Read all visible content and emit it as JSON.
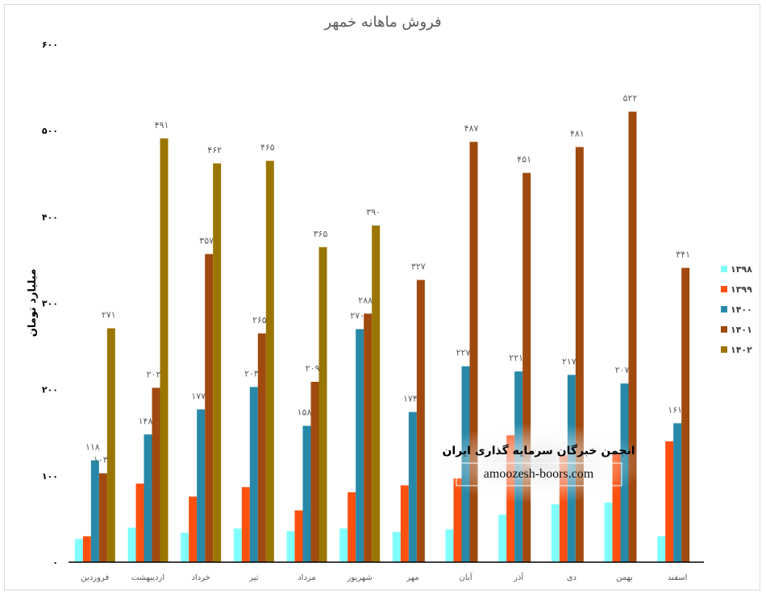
{
  "chart_data": {
    "type": "bar",
    "title": "فروش ماهانه خمهر",
    "xlabel": "",
    "ylabel": "میلیارد تومان",
    "ylim": [
      0,
      600
    ],
    "yticks": [
      0,
      100,
      200,
      300,
      400,
      500,
      600
    ],
    "ytick_labels": [
      "۰",
      "۱۰۰",
      "۲۰۰",
      "۳۰۰",
      "۴۰۰",
      "۵۰۰",
      "۶۰۰"
    ],
    "grid": false,
    "legend_position": "right",
    "categories": [
      "فروردین",
      "اردیبهشت",
      "خرداد",
      "تیر",
      "مرداد",
      "شهریور",
      "مهر",
      "آبان",
      "آذر",
      "دی",
      "بهمن",
      "اسفند"
    ],
    "series": [
      {
        "name": "۱۳۹۸",
        "color": "#80FFFF",
        "show_labels": false,
        "values": [
          27,
          40,
          34,
          39,
          36,
          39,
          35,
          38,
          55,
          67,
          69,
          30
        ]
      },
      {
        "name": "۱۳۹۹",
        "color": "#FF5010",
        "show_labels": false,
        "values": [
          30,
          91,
          76,
          87,
          60,
          81,
          89,
          97,
          147,
          124,
          125,
          140
        ]
      },
      {
        "name": "۱۴۰۰",
        "color": "#2888A8",
        "show_labels": true,
        "values": [
          118,
          148,
          177,
          203,
          158,
          270,
          174,
          227,
          221,
          217,
          207,
          161
        ]
      },
      {
        "name": "۱۴۰۱",
        "color": "#A04A10",
        "show_labels": true,
        "values": [
          103,
          202,
          357,
          265,
          209,
          288,
          327,
          487,
          451,
          481,
          522,
          341
        ]
      },
      {
        "name": "۱۴۰۲",
        "color": "#9A7600",
        "show_labels": true,
        "values": [
          271,
          491,
          462,
          465,
          365,
          390,
          null,
          null,
          null,
          null,
          null,
          null
        ]
      }
    ]
  },
  "watermark": {
    "title": "انجمن خبرگان سرمایه گذاری ایران",
    "url": "amoozesh-boors.com"
  }
}
